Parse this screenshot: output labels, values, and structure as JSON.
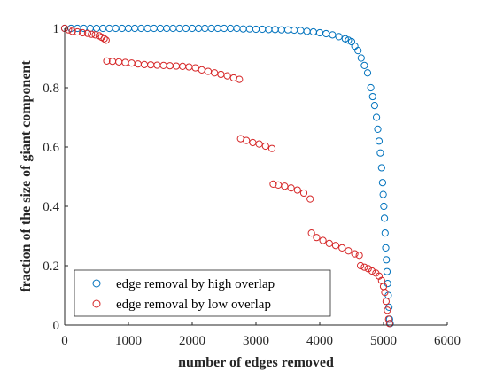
{
  "chart_data": {
    "type": "scatter",
    "xlabel": "number of edges removed",
    "ylabel": "fraction of the size of giant component",
    "xlim": [
      0,
      6000
    ],
    "ylim": [
      0,
      1
    ],
    "xticks": [
      "0",
      "1000",
      "2000",
      "3000",
      "4000",
      "5000",
      "6000"
    ],
    "yticks": [
      "0",
      "0.2",
      "0.4",
      "0.6",
      "0.8",
      "1"
    ],
    "grid": false,
    "legend_position": "bottom-left",
    "series": [
      {
        "name": "edge removal by high overlap",
        "color": "#0072BD",
        "marker": "circle",
        "points": [
          [
            0,
            1.0
          ],
          [
            100,
            1.0
          ],
          [
            200,
            1.0
          ],
          [
            300,
            1.0
          ],
          [
            400,
            1.0
          ],
          [
            500,
            1.0
          ],
          [
            600,
            1.0
          ],
          [
            700,
            1.0
          ],
          [
            800,
            1.0
          ],
          [
            900,
            1.0
          ],
          [
            1000,
            1.0
          ],
          [
            1100,
            1.0
          ],
          [
            1200,
            1.0
          ],
          [
            1300,
            1.0
          ],
          [
            1400,
            1.0
          ],
          [
            1500,
            1.0
          ],
          [
            1600,
            1.0
          ],
          [
            1700,
            1.0
          ],
          [
            1800,
            1.0
          ],
          [
            1900,
            1.0
          ],
          [
            2000,
            1.0
          ],
          [
            2100,
            1.0
          ],
          [
            2200,
            1.0
          ],
          [
            2300,
            1.0
          ],
          [
            2400,
            1.0
          ],
          [
            2500,
            1.0
          ],
          [
            2600,
            1.0
          ],
          [
            2700,
            1.0
          ],
          [
            2800,
            0.998
          ],
          [
            2900,
            0.998
          ],
          [
            3000,
            0.997
          ],
          [
            3100,
            0.997
          ],
          [
            3200,
            0.996
          ],
          [
            3300,
            0.996
          ],
          [
            3400,
            0.995
          ],
          [
            3500,
            0.995
          ],
          [
            3600,
            0.994
          ],
          [
            3700,
            0.993
          ],
          [
            3800,
            0.99
          ],
          [
            3900,
            0.988
          ],
          [
            4000,
            0.985
          ],
          [
            4100,
            0.982
          ],
          [
            4200,
            0.978
          ],
          [
            4300,
            0.972
          ],
          [
            4400,
            0.965
          ],
          [
            4450,
            0.96
          ],
          [
            4500,
            0.955
          ],
          [
            4550,
            0.94
          ],
          [
            4600,
            0.925
          ],
          [
            4650,
            0.9
          ],
          [
            4700,
            0.875
          ],
          [
            4750,
            0.85
          ],
          [
            4800,
            0.8
          ],
          [
            4830,
            0.77
          ],
          [
            4860,
            0.74
          ],
          [
            4890,
            0.7
          ],
          [
            4910,
            0.66
          ],
          [
            4930,
            0.62
          ],
          [
            4950,
            0.58
          ],
          [
            4970,
            0.53
          ],
          [
            4985,
            0.48
          ],
          [
            4995,
            0.44
          ],
          [
            5005,
            0.4
          ],
          [
            5015,
            0.36
          ],
          [
            5025,
            0.31
          ],
          [
            5035,
            0.26
          ],
          [
            5045,
            0.22
          ],
          [
            5055,
            0.18
          ],
          [
            5065,
            0.14
          ],
          [
            5075,
            0.1
          ],
          [
            5085,
            0.06
          ],
          [
            5095,
            0.02
          ],
          [
            5105,
            0.005
          ]
        ]
      },
      {
        "name": "edge removal by low overlap",
        "color": "#D62728",
        "marker": "circle",
        "points": [
          [
            0,
            1.0
          ],
          [
            60,
            0.995
          ],
          [
            120,
            0.99
          ],
          [
            200,
            0.988
          ],
          [
            280,
            0.985
          ],
          [
            360,
            0.983
          ],
          [
            420,
            0.98
          ],
          [
            480,
            0.978
          ],
          [
            540,
            0.975
          ],
          [
            580,
            0.97
          ],
          [
            620,
            0.965
          ],
          [
            650,
            0.96
          ],
          [
            660,
            0.89
          ],
          [
            750,
            0.889
          ],
          [
            850,
            0.887
          ],
          [
            950,
            0.885
          ],
          [
            1050,
            0.883
          ],
          [
            1150,
            0.88
          ],
          [
            1250,
            0.878
          ],
          [
            1350,
            0.877
          ],
          [
            1450,
            0.876
          ],
          [
            1550,
            0.875
          ],
          [
            1650,
            0.874
          ],
          [
            1750,
            0.873
          ],
          [
            1850,
            0.872
          ],
          [
            1950,
            0.87
          ],
          [
            2050,
            0.867
          ],
          [
            2150,
            0.86
          ],
          [
            2250,
            0.855
          ],
          [
            2350,
            0.85
          ],
          [
            2450,
            0.845
          ],
          [
            2550,
            0.84
          ],
          [
            2650,
            0.833
          ],
          [
            2740,
            0.828
          ],
          [
            2760,
            0.628
          ],
          [
            2850,
            0.622
          ],
          [
            2950,
            0.615
          ],
          [
            3050,
            0.61
          ],
          [
            3150,
            0.603
          ],
          [
            3250,
            0.595
          ],
          [
            3270,
            0.475
          ],
          [
            3350,
            0.472
          ],
          [
            3450,
            0.468
          ],
          [
            3550,
            0.462
          ],
          [
            3650,
            0.455
          ],
          [
            3750,
            0.445
          ],
          [
            3850,
            0.425
          ],
          [
            3870,
            0.31
          ],
          [
            3950,
            0.295
          ],
          [
            4050,
            0.285
          ],
          [
            4150,
            0.275
          ],
          [
            4250,
            0.268
          ],
          [
            4350,
            0.26
          ],
          [
            4450,
            0.25
          ],
          [
            4550,
            0.24
          ],
          [
            4620,
            0.235
          ],
          [
            4640,
            0.2
          ],
          [
            4700,
            0.195
          ],
          [
            4760,
            0.19
          ],
          [
            4820,
            0.182
          ],
          [
            4880,
            0.175
          ],
          [
            4930,
            0.165
          ],
          [
            4970,
            0.15
          ],
          [
            5000,
            0.13
          ],
          [
            5020,
            0.11
          ],
          [
            5040,
            0.08
          ],
          [
            5060,
            0.05
          ],
          [
            5080,
            0.02
          ],
          [
            5095,
            0.005
          ]
        ]
      }
    ]
  }
}
